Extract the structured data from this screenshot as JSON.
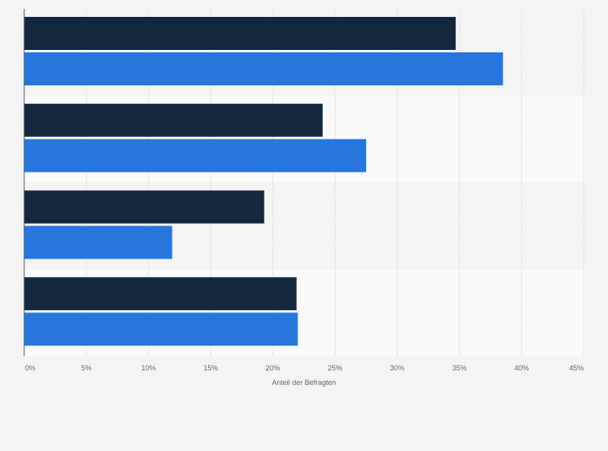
{
  "chart_data": {
    "type": "bar",
    "orientation": "horizontal",
    "categories": [
      "",
      "",
      "",
      ""
    ],
    "series": [
      {
        "name": "",
        "color": "#13283f",
        "values": [
          34.7,
          24.0,
          19.3,
          21.9
        ]
      },
      {
        "name": "",
        "color": "#2776dd",
        "values": [
          38.5,
          27.5,
          11.9,
          22.0
        ]
      }
    ],
    "xlim": [
      0,
      45
    ],
    "x_ticks": [
      0,
      5,
      10,
      15,
      20,
      25,
      30,
      35,
      40,
      45
    ],
    "x_tick_labels": [
      "0%",
      "5%",
      "10%",
      "15%",
      "20%",
      "25%",
      "30%",
      "35%",
      "40%",
      "45%"
    ],
    "xlabel": "Anteil der Befragten",
    "ylabel": "",
    "grid": true,
    "band_colors": [
      "#f4f4f4",
      "#fafafa"
    ]
  }
}
